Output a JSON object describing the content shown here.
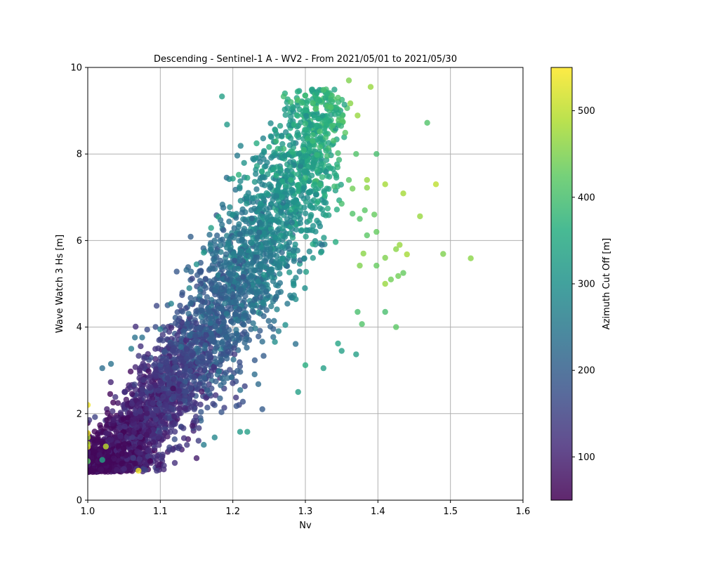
{
  "chart_data": {
    "type": "scatter",
    "title": "Descending - Sentinel-1 A - WV2 - From 2021/05/01 to 2021/05/30",
    "xlabel": "Nv",
    "ylabel": "Wave Watch 3 Hs [m]",
    "xlim": [
      1.0,
      1.6
    ],
    "ylim": [
      0,
      10
    ],
    "xticks": [
      1.0,
      1.1,
      1.2,
      1.3,
      1.4,
      1.5,
      1.6
    ],
    "yticks": [
      0,
      2,
      4,
      6,
      8,
      10
    ],
    "grid": true,
    "colorbar": {
      "label": "Azimuth Cut Off [m]",
      "colormap": "viridis",
      "range": [
        50,
        550
      ],
      "ticks": [
        100,
        200,
        300,
        400,
        500
      ]
    },
    "marker_alpha": 0.8,
    "points_note": "",
    "points": [
      [
        1.185,
        9.33,
        330
      ],
      [
        1.192,
        8.68,
        320
      ],
      [
        1.27,
        9.33,
        390
      ],
      [
        1.28,
        9.2,
        390
      ],
      [
        1.295,
        9.18,
        385
      ],
      [
        1.3,
        9.35,
        390
      ],
      [
        1.325,
        9.48,
        400
      ],
      [
        1.33,
        9.1,
        400
      ],
      [
        1.335,
        9.08,
        410
      ],
      [
        1.345,
        9.3,
        410
      ],
      [
        1.36,
        9.7,
        450
      ],
      [
        1.362,
        9.17,
        460
      ],
      [
        1.372,
        8.89,
        470
      ],
      [
        1.39,
        9.55,
        470
      ],
      [
        1.468,
        8.72,
        410
      ],
      [
        1.3,
        8.7,
        380
      ],
      [
        1.31,
        8.3,
        390
      ],
      [
        1.32,
        8.52,
        400
      ],
      [
        1.328,
        8.38,
        390
      ],
      [
        1.35,
        8.79,
        410
      ],
      [
        1.355,
        8.49,
        420
      ],
      [
        1.37,
        8.0,
        410
      ],
      [
        1.398,
        8.0,
        400
      ],
      [
        1.25,
        8.16,
        360
      ],
      [
        1.262,
        8.12,
        370
      ],
      [
        1.282,
        8.05,
        370
      ],
      [
        1.298,
        8.1,
        380
      ],
      [
        1.316,
        7.98,
        380
      ],
      [
        1.33,
        7.95,
        390
      ],
      [
        1.345,
        8.02,
        400
      ],
      [
        1.2,
        7.43,
        330
      ],
      [
        1.22,
        7.45,
        340
      ],
      [
        1.24,
        7.6,
        350
      ],
      [
        1.26,
        7.5,
        360
      ],
      [
        1.28,
        7.4,
        370
      ],
      [
        1.3,
        7.45,
        380
      ],
      [
        1.32,
        7.3,
        380
      ],
      [
        1.34,
        7.25,
        390
      ],
      [
        1.36,
        7.4,
        420
      ],
      [
        1.365,
        7.2,
        440
      ],
      [
        1.385,
        7.4,
        470
      ],
      [
        1.385,
        7.22,
        460
      ],
      [
        1.41,
        7.3,
        480
      ],
      [
        1.435,
        7.09,
        480
      ],
      [
        1.48,
        7.3,
        500
      ],
      [
        1.35,
        6.85,
        400
      ],
      [
        1.365,
        6.62,
        410
      ],
      [
        1.382,
        6.7,
        420
      ],
      [
        1.395,
        6.6,
        430
      ],
      [
        1.375,
        6.5,
        415
      ],
      [
        1.398,
        6.2,
        430
      ],
      [
        1.385,
        6.12,
        420
      ],
      [
        1.458,
        6.56,
        470
      ],
      [
        1.43,
        5.9,
        470
      ],
      [
        1.425,
        5.8,
        460
      ],
      [
        1.44,
        5.68,
        480
      ],
      [
        1.49,
        5.69,
        450
      ],
      [
        1.528,
        5.59,
        460
      ],
      [
        1.41,
        5.6,
        450
      ],
      [
        1.38,
        5.7,
        460
      ],
      [
        1.375,
        5.42,
        450
      ],
      [
        1.398,
        5.42,
        430
      ],
      [
        1.41,
        5.0,
        470
      ],
      [
        1.418,
        5.1,
        440
      ],
      [
        1.428,
        5.18,
        440
      ],
      [
        1.435,
        5.25,
        430
      ],
      [
        1.41,
        4.35,
        400
      ],
      [
        1.425,
        4.0,
        420
      ],
      [
        1.378,
        4.07,
        410
      ],
      [
        1.372,
        4.35,
        400
      ],
      [
        1.37,
        3.37,
        330
      ],
      [
        1.35,
        3.45,
        330
      ],
      [
        1.345,
        3.62,
        340
      ],
      [
        1.325,
        3.05,
        330
      ],
      [
        1.3,
        3.12,
        360
      ],
      [
        1.29,
        2.5,
        330
      ],
      [
        1.22,
        1.58,
        330
      ],
      [
        1.21,
        1.58,
        320
      ],
      [
        1.18,
        6.55,
        330
      ],
      [
        1.17,
        6.29,
        330
      ],
      [
        1.16,
        5.72,
        320
      ],
      [
        1.15,
        5.45,
        300
      ],
      [
        1.02,
        3.05,
        230
      ],
      [
        1.032,
        3.15,
        240
      ],
      [
        1.06,
        3.5,
        260
      ],
      [
        1.065,
        3.76,
        240
      ],
      [
        1.075,
        3.76,
        240
      ],
      [
        1.1,
        3.95,
        260
      ],
      [
        1.115,
        4.54,
        270
      ],
      [
        1.14,
        4.9,
        280
      ],
      [
        1.0,
        0.82,
        90
      ],
      [
        1.0,
        0.9,
        420
      ],
      [
        1.0,
        2.2,
        540
      ],
      [
        1.0,
        1.23,
        520
      ],
      [
        1.0,
        1.3,
        500
      ],
      [
        1.0,
        1.45,
        480
      ],
      [
        1.0,
        1.55,
        540
      ],
      [
        1.002,
        1.85,
        130
      ],
      [
        1.01,
        1.92,
        150
      ],
      [
        1.025,
        1.24,
        500
      ],
      [
        1.02,
        0.93,
        340
      ],
      [
        1.04,
        0.7,
        90
      ],
      [
        1.05,
        0.72,
        110
      ],
      [
        1.07,
        0.68,
        540
      ],
      [
        1.095,
        0.68,
        130
      ],
      [
        1.105,
        0.8,
        120
      ],
      [
        1.12,
        0.86,
        120
      ],
      [
        1.15,
        0.97,
        90
      ],
      [
        1.16,
        1.28,
        260
      ],
      [
        1.175,
        1.45,
        280
      ]
    ]
  }
}
